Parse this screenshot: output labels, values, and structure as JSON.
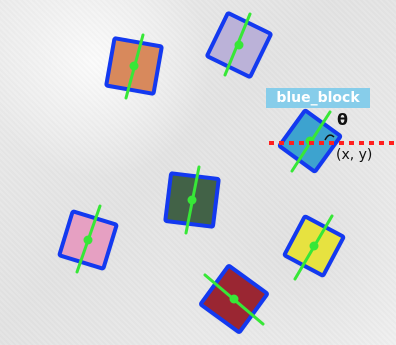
{
  "scene": {
    "annotation_label": "blue_block",
    "angle_symbol": "θ",
    "position_label": "(x, y)"
  },
  "blocks": [
    {
      "color": "#d8895c"
    },
    {
      "color": "#bbb2d8"
    },
    {
      "color": "#3da3cf"
    },
    {
      "color": "#436246"
    },
    {
      "color": "#e6a0c2"
    },
    {
      "color": "#e7e23f"
    },
    {
      "color": "#9a2531"
    }
  ]
}
